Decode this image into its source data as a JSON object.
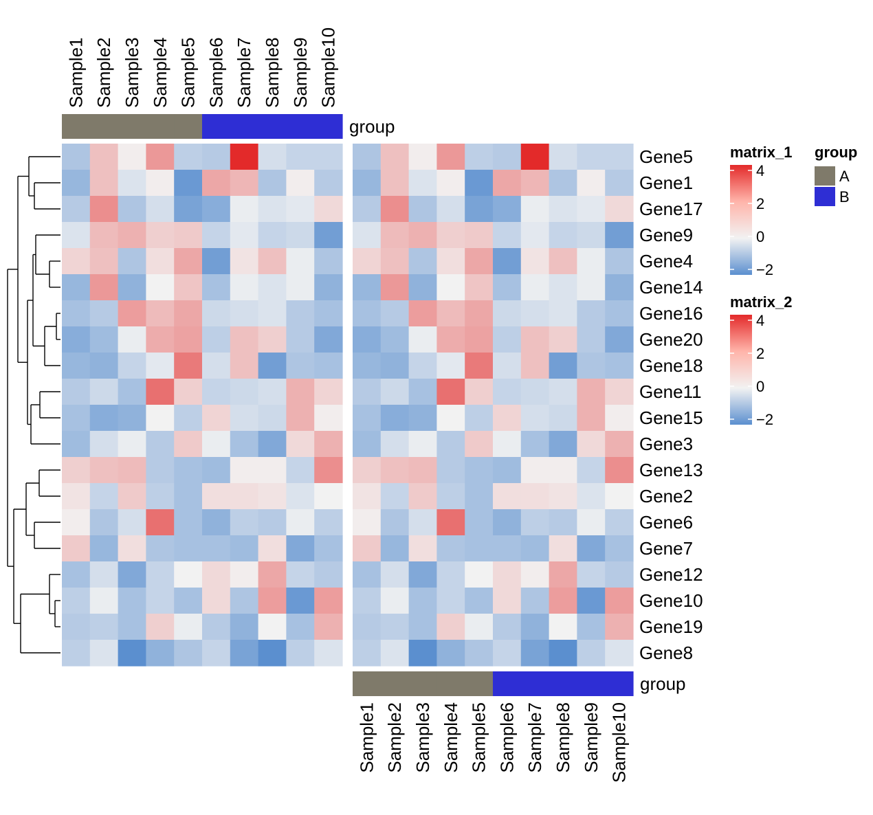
{
  "chart_data": {
    "type": "heatmap",
    "samples": [
      "Sample1",
      "Sample2",
      "Sample3",
      "Sample4",
      "Sample5",
      "Sample6",
      "Sample7",
      "Sample8",
      "Sample9",
      "Sample10"
    ],
    "genes": [
      "Gene5",
      "Gene1",
      "Gene17",
      "Gene9",
      "Gene4",
      "Gene14",
      "Gene16",
      "Gene20",
      "Gene18",
      "Gene11",
      "Gene15",
      "Gene3",
      "Gene13",
      "Gene2",
      "Gene6",
      "Gene7",
      "Gene12",
      "Gene10",
      "Gene19",
      "Gene8"
    ],
    "group_label": "group",
    "group_assignment": [
      "A",
      "A",
      "A",
      "A",
      "A",
      "B",
      "B",
      "B",
      "B",
      "B"
    ],
    "group_colors": {
      "A": "#7f7a6a",
      "B": "#2e2ed4"
    },
    "values": [
      [
        -0.9,
        1.0,
        0.1,
        1.8,
        -0.7,
        -0.8,
        4.0,
        -0.4,
        -0.6,
        -0.6
      ],
      [
        -1.2,
        1.0,
        -0.3,
        0.1,
        -1.8,
        1.5,
        1.2,
        -0.9,
        0.1,
        -0.8
      ],
      [
        -0.8,
        2.0,
        -0.9,
        -0.4,
        -1.6,
        -1.4,
        -0.1,
        -0.3,
        -0.2,
        0.5
      ],
      [
        -0.3,
        1.1,
        1.3,
        0.7,
        0.8,
        -0.6,
        -0.2,
        -0.6,
        -0.5,
        -1.7
      ],
      [
        0.6,
        1.0,
        -0.9,
        0.4,
        1.5,
        -1.7,
        0.3,
        1.0,
        -0.1,
        -0.9
      ],
      [
        -1.2,
        1.8,
        -1.3,
        0.0,
        0.9,
        -1.0,
        -0.1,
        -0.3,
        -0.1,
        -1.3
      ],
      [
        -1.0,
        -0.8,
        1.7,
        1.1,
        1.5,
        -0.5,
        -0.4,
        -0.3,
        -0.8,
        -1.0
      ],
      [
        -1.4,
        -1.1,
        -0.1,
        1.4,
        1.6,
        -0.7,
        1.0,
        0.7,
        -0.8,
        -1.5
      ],
      [
        -1.2,
        -1.3,
        -0.6,
        -0.2,
        2.4,
        -0.4,
        1.0,
        -1.7,
        -0.9,
        -1.0
      ],
      [
        -0.8,
        -0.5,
        -1.0,
        2.6,
        0.7,
        -0.6,
        -0.5,
        -0.4,
        1.3,
        0.6
      ],
      [
        -1.0,
        -1.4,
        -1.3,
        0.0,
        -0.7,
        0.6,
        -0.4,
        -0.5,
        1.3,
        0.1
      ],
      [
        -1.1,
        -0.4,
        -0.1,
        -0.8,
        0.8,
        -0.1,
        -1.0,
        -1.5,
        0.5,
        1.3
      ],
      [
        0.7,
        1.0,
        1.1,
        -0.8,
        -1.0,
        -1.1,
        0.1,
        0.1,
        -0.6,
        2.0
      ],
      [
        0.3,
        -0.6,
        0.8,
        -0.7,
        -1.0,
        0.4,
        0.4,
        0.3,
        -0.3,
        0.0
      ],
      [
        0.1,
        -0.9,
        -0.4,
        2.6,
        -1.0,
        -1.3,
        -0.7,
        -0.8,
        -0.1,
        -0.7
      ],
      [
        0.8,
        -1.2,
        0.4,
        -0.9,
        -1.0,
        -1.0,
        -1.1,
        0.4,
        -1.5,
        -1.0
      ],
      [
        -1.0,
        -0.4,
        -1.5,
        -0.6,
        0.0,
        0.5,
        0.1,
        1.5,
        -0.6,
        -0.8
      ],
      [
        -0.7,
        -0.1,
        -1.0,
        -0.6,
        -1.0,
        0.5,
        -0.9,
        1.7,
        -1.8,
        1.7
      ],
      [
        -0.8,
        -0.7,
        -1.0,
        0.7,
        -0.1,
        -0.8,
        -1.3,
        0.0,
        -1.0,
        1.3
      ],
      [
        -0.7,
        -0.3,
        -2.0,
        -1.3,
        -0.9,
        -0.6,
        -1.6,
        -2.0,
        -0.7,
        -0.3
      ]
    ],
    "legends": [
      {
        "title": "matrix_1",
        "ticks": [
          "4",
          "2",
          "0",
          "−2"
        ],
        "tick_values": [
          4,
          2,
          0,
          -2
        ]
      },
      {
        "title": "matrix_2",
        "ticks": [
          "4",
          "2",
          "0",
          "−2"
        ],
        "tick_values": [
          4,
          2,
          0,
          -2
        ]
      }
    ],
    "group_legend": {
      "title": "group",
      "entries": [
        "A",
        "B"
      ]
    },
    "color_scale": {
      "low": "#5b8fcf",
      "mid": "#f2f2f2",
      "high": "#e32a2a",
      "range": [
        -2,
        4
      ]
    }
  }
}
